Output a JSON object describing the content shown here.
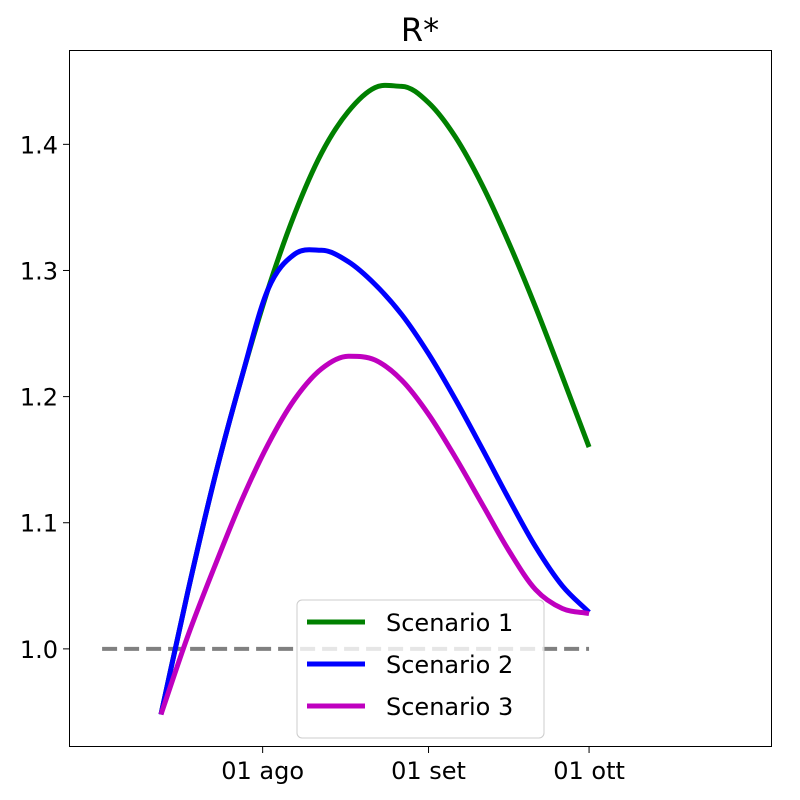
{
  "chart_data": {
    "type": "line",
    "title": "R*",
    "xlabel": "",
    "ylabel": "",
    "xlim": [
      -10,
      121
    ],
    "ylim": [
      0.923,
      1.474
    ],
    "x_ticks": [
      {
        "value": 26,
        "label": "01 ago"
      },
      {
        "value": 57,
        "label": "01 set"
      },
      {
        "value": 87,
        "label": "01 ott"
      }
    ],
    "y_ticks": [
      {
        "value": 1.0,
        "label": "1.0"
      },
      {
        "value": 1.1,
        "label": "1.1"
      },
      {
        "value": 1.2,
        "label": "1.2"
      },
      {
        "value": 1.3,
        "label": "1.3"
      },
      {
        "value": 1.4,
        "label": "1.4"
      }
    ],
    "reference_line": {
      "y": 1.0,
      "x_range": [
        -4,
        87
      ],
      "color": "#808080",
      "style": "dashed"
    },
    "series": [
      {
        "name": "Scenario 1",
        "color": "#008000",
        "x": [
          7,
          12,
          17,
          22,
          27,
          32,
          37,
          42,
          47,
          52,
          57,
          62,
          67,
          72,
          77,
          82,
          87
        ],
        "y": [
          0.948,
          1.045,
          1.135,
          1.214,
          1.285,
          1.345,
          1.393,
          1.426,
          1.445,
          1.446,
          1.433,
          1.406,
          1.368,
          1.322,
          1.271,
          1.216,
          1.16
        ]
      },
      {
        "name": "Scenario 2",
        "color": "#0000ff",
        "x": [
          7,
          12,
          17,
          22,
          27,
          32,
          37,
          42,
          47,
          52,
          57,
          62,
          67,
          72,
          77,
          82,
          87
        ],
        "y": [
          0.948,
          1.045,
          1.135,
          1.214,
          1.285,
          1.313,
          1.316,
          1.307,
          1.289,
          1.265,
          1.234,
          1.198,
          1.159,
          1.119,
          1.081,
          1.05,
          1.029
        ]
      },
      {
        "name": "Scenario 3",
        "color": "#bf00bf",
        "x": [
          7,
          12,
          17,
          22,
          27,
          32,
          37,
          42,
          47,
          52,
          57,
          62,
          67,
          72,
          77,
          82,
          87
        ],
        "y": [
          0.948,
          1.01,
          1.065,
          1.117,
          1.162,
          1.198,
          1.222,
          1.232,
          1.229,
          1.213,
          1.186,
          1.152,
          1.115,
          1.078,
          1.047,
          1.032,
          1.028
        ]
      }
    ],
    "legend": {
      "position": "lower-center"
    }
  }
}
